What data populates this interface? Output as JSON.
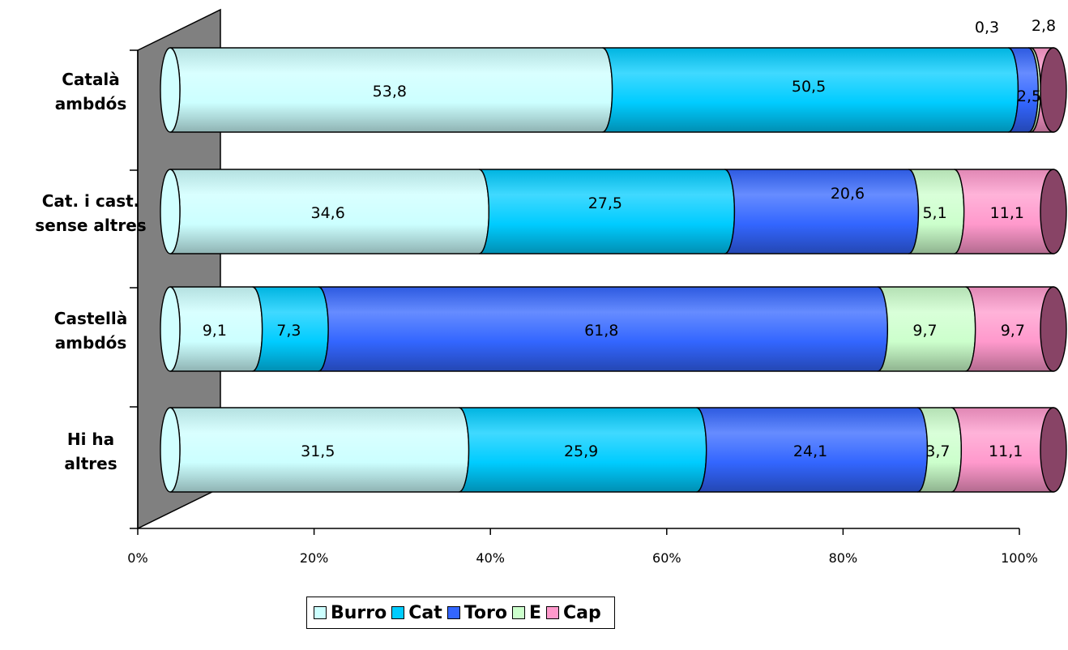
{
  "chart_data": {
    "type": "bar",
    "orientation": "horizontal",
    "stacked": "100%",
    "categories": [
      [
        "Català",
        "ambdós"
      ],
      [
        "Cat. i cast.",
        "sense altres"
      ],
      [
        "Castellà",
        "ambdós"
      ],
      [
        "Hi ha",
        "altres"
      ]
    ],
    "series": [
      {
        "name": "Burro",
        "color": "#ccffff",
        "values": [
          53.8,
          34.6,
          9.1,
          31.5
        ],
        "labels": [
          "53,8",
          "34,6",
          "9,1",
          "31,5"
        ]
      },
      {
        "name": "Cat",
        "color": "#00ccff",
        "values": [
          50.5,
          27.5,
          7.3,
          25.9
        ],
        "labels": [
          "50,5",
          "27,5",
          "7,3",
          "25,9"
        ]
      },
      {
        "name": "Toro",
        "color": "#3366ff",
        "values": [
          2.5,
          20.6,
          61.8,
          24.1
        ],
        "labels": [
          "2,5",
          "20,6",
          "61,8",
          "24,1"
        ]
      },
      {
        "name": "E",
        "color": "#ccffcc",
        "values": [
          0.3,
          5.1,
          9.7,
          3.7
        ],
        "labels": [
          "0,3",
          "5,1",
          "9,7",
          "3,7"
        ]
      },
      {
        "name": "Cap",
        "color": "#ff99cc",
        "values": [
          2.8,
          11.1,
          9.7,
          11.1
        ],
        "labels": [
          "2,8",
          "11,1",
          "9,7",
          "11,1"
        ]
      }
    ],
    "x_ticks": [
      "0%",
      "20%",
      "40%",
      "60%",
      "80%",
      "100%"
    ],
    "xlim": [
      0,
      100
    ],
    "legend_position": "bottom",
    "grid": false,
    "end_cap_color": "#884466",
    "wall_color": "#808080"
  }
}
